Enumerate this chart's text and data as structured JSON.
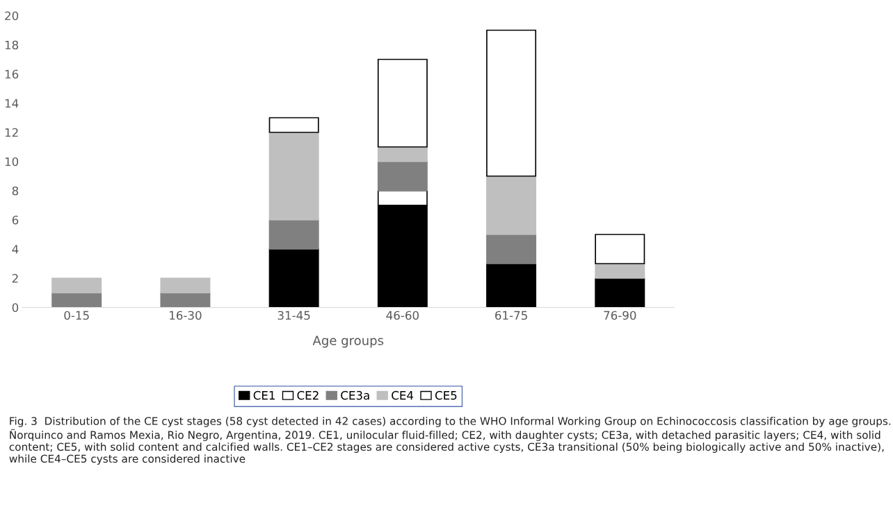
{
  "chart_data": {
    "type": "bar",
    "stacked": true,
    "xlabel": "Age groups",
    "categories": [
      "0-15",
      "16-30",
      "31-45",
      "46-60",
      "61-75",
      "76-90"
    ],
    "series": [
      {
        "name": "CE1",
        "color": "#000000",
        "values": [
          0,
          0,
          4,
          7,
          3,
          2
        ]
      },
      {
        "name": "CE2",
        "color": "#ffffff",
        "values": [
          0,
          0,
          0,
          1,
          0,
          0
        ]
      },
      {
        "name": "CE3a",
        "color": "#808080",
        "values": [
          1,
          1,
          2,
          2,
          2,
          0
        ]
      },
      {
        "name": "CE4",
        "color": "#bfbfbf",
        "values": [
          1,
          1,
          6,
          1,
          4,
          1
        ]
      },
      {
        "name": "CE5",
        "color": "#ffffff",
        "values": [
          0,
          0,
          1,
          6,
          10,
          2
        ]
      }
    ],
    "ylim": [
      0,
      20
    ],
    "yticks": [
      0,
      2,
      4,
      6,
      8,
      10,
      12,
      14,
      16,
      18,
      20
    ],
    "grid": false,
    "legend": "bottom",
    "annotations": [
      "Fig. 3  Distribution of the CE cyst stages (58 cyst detected in 42 cases) according to the WHO Informal Working Group on Echinococcosis classification by age groups. Ñorquinco and Ramos Mexia, Rio Negro, Argentina, 2019. CE1, unilocular fluid-filled; CE2, with daughter cysts; CE3a, with detached parasitic layers; CE4, with solid content; CE5, with solid content and calcified walls. CE1–CE2 stages are considered active cysts, CE3a transitional (50% being biologically active and 50% inactive), while CE4–CE5 cysts are considered inactive"
    ]
  }
}
